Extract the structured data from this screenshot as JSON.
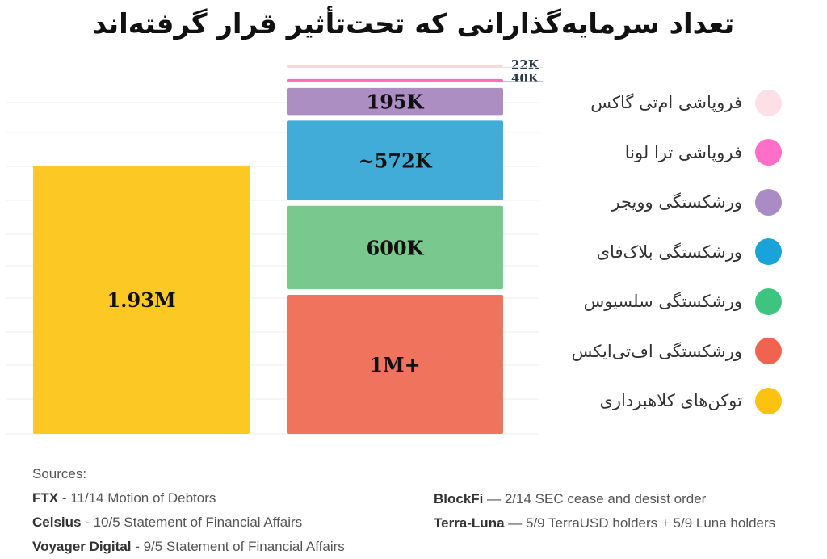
{
  "chart_data": {
    "type": "bar",
    "stacked": true,
    "title": "تعداد سرمایه‌گذارانی که تحت‌تأثیر قرار گرفته‌اند",
    "grid": true,
    "legend_position": "right",
    "bars": [
      {
        "segments": [
          {
            "name": "توکن‌های کلاهبرداری",
            "value": 1930000,
            "label": "1.93M",
            "color": "#fcc924"
          }
        ]
      },
      {
        "segments": [
          {
            "name": "ورشکستگی  اف‌تی‌ایکس",
            "value": 1000000,
            "label": "1M+",
            "color": "#f0735d"
          },
          {
            "name": "ورشکستگی سلسیوس",
            "value": 600000,
            "label": "600K",
            "color": "#79c98e"
          },
          {
            "name": "ورشکستگی بلاک‌فای",
            "value": 572000,
            "label": "~572K",
            "color": "#42acd8"
          },
          {
            "name": "ورشکستگی وویجر",
            "value": 195000,
            "label": "195K",
            "color": "#ac8ec3"
          },
          {
            "name": "فروپاشی ترا لونا",
            "value": 40000,
            "label": "40K",
            "color": "#ff6eb8"
          },
          {
            "name": "فروپاشی ام‌تی گاکس",
            "value": 22000,
            "label": "22K",
            "color": "#fcd5dd"
          }
        ]
      }
    ],
    "legend": [
      {
        "label": "فروپاشی ام‌تی گاکس",
        "color": "#fde0e6"
      },
      {
        "label": "فروپاشی ترا لونا",
        "color": "#ff6ec7"
      },
      {
        "label": "ورشکستگی وویجر",
        "color": "#a98bc6"
      },
      {
        "label": "ورشکستگی بلاک‌فای",
        "color": "#1aa3d8"
      },
      {
        "label": "ورشکستگی سلسیوس",
        "color": "#3dc47e"
      },
      {
        "label": "ورشکستگی  اف‌تی‌ایکس",
        "color": "#f0634f"
      },
      {
        "label": "توکن‌های کلاهبرداری",
        "color": "#fcc210"
      }
    ]
  },
  "sources": {
    "heading": "Sources:",
    "items": [
      {
        "name": "FTX",
        "text": " - 11/14 Motion of Debtors"
      },
      {
        "name": "Celsius",
        "text": " - 10/5 Statement of Financial Affairs"
      },
      {
        "name": "Voyager Digital",
        "text": " - 9/5 Statement of Financial Affairs"
      },
      {
        "name": "BlockFi",
        "text": " — 2/14 SEC cease and desist order"
      },
      {
        "name": "Terra-Luna",
        "text": " — 5/9 TerraUSD holders + 5/9 Luna holders"
      }
    ]
  }
}
